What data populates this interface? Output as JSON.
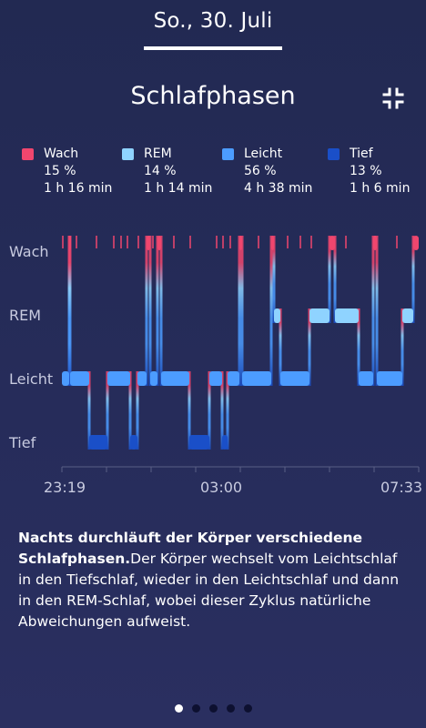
{
  "header": {
    "date": "So., 30. Juli"
  },
  "page": {
    "title": "Schlafphasen"
  },
  "legend": [
    {
      "stage": "Wach",
      "percent": "15 %",
      "duration": "1 h 16 min",
      "color": "#f0466e"
    },
    {
      "stage": "REM",
      "percent": "14 %",
      "duration": "1 h 14 min",
      "color": "#8fd3ff"
    },
    {
      "stage": "Leicht",
      "percent": "56 %",
      "duration": "4 h 38 min",
      "color": "#4c9cff"
    },
    {
      "stage": "Tief",
      "percent": "13 %",
      "duration": "1 h 6 min",
      "color": "#1a4fc8"
    }
  ],
  "chart_data": {
    "type": "area",
    "stages": [
      "Wach",
      "REM",
      "Leicht",
      "Tief"
    ],
    "x_ticks": [
      "23:19",
      "03:00",
      "07:33"
    ],
    "segments": [
      {
        "stage": "Leicht",
        "start": 0,
        "end": 8
      },
      {
        "stage": "Wach",
        "start": 8,
        "end": 9
      },
      {
        "stage": "Leicht",
        "start": 9,
        "end": 30
      },
      {
        "stage": "Tief",
        "start": 30,
        "end": 50
      },
      {
        "stage": "Leicht",
        "start": 50,
        "end": 75
      },
      {
        "stage": "Tief",
        "start": 75,
        "end": 83
      },
      {
        "stage": "Leicht",
        "start": 83,
        "end": 93
      },
      {
        "stage": "Wach",
        "start": 93,
        "end": 97
      },
      {
        "stage": "Leicht",
        "start": 97,
        "end": 105
      },
      {
        "stage": "Wach",
        "start": 105,
        "end": 109
      },
      {
        "stage": "Leicht",
        "start": 109,
        "end": 140
      },
      {
        "stage": "Tief",
        "start": 140,
        "end": 162
      },
      {
        "stage": "Leicht",
        "start": 162,
        "end": 176
      },
      {
        "stage": "Tief",
        "start": 176,
        "end": 182
      },
      {
        "stage": "Leicht",
        "start": 182,
        "end": 195
      },
      {
        "stage": "Wach",
        "start": 195,
        "end": 198
      },
      {
        "stage": "Leicht",
        "start": 198,
        "end": 230
      },
      {
        "stage": "Wach",
        "start": 230,
        "end": 233
      },
      {
        "stage": "REM",
        "start": 233,
        "end": 240
      },
      {
        "stage": "Leicht",
        "start": 240,
        "end": 272
      },
      {
        "stage": "REM",
        "start": 272,
        "end": 294
      },
      {
        "stage": "Wach",
        "start": 294,
        "end": 300
      },
      {
        "stage": "REM",
        "start": 300,
        "end": 326
      },
      {
        "stage": "Leicht",
        "start": 326,
        "end": 342
      },
      {
        "stage": "Wach",
        "start": 342,
        "end": 346
      },
      {
        "stage": "Leicht",
        "start": 346,
        "end": 374
      },
      {
        "stage": "REM",
        "start": 374,
        "end": 386
      },
      {
        "stage": "Wach",
        "start": 386,
        "end": 392
      }
    ],
    "awake_ticks": [
      1,
      16,
      38,
      57,
      65,
      72,
      84,
      96,
      100,
      123,
      141,
      170,
      177,
      185,
      216,
      248,
      262,
      274,
      312,
      344,
      368
    ]
  },
  "description": {
    "bold": "Nachts durchläuft der Körper verschiedene Schlafphasen.",
    "text": "Der Körper wechselt vom Leichtschlaf in den Tiefschlaf, wieder in den Leichtschlaf und dann in den REM-Schlaf, wobei dieser Zyklus natürliche Abweichungen aufweist."
  },
  "pagination": {
    "count": 5,
    "active": 0
  }
}
